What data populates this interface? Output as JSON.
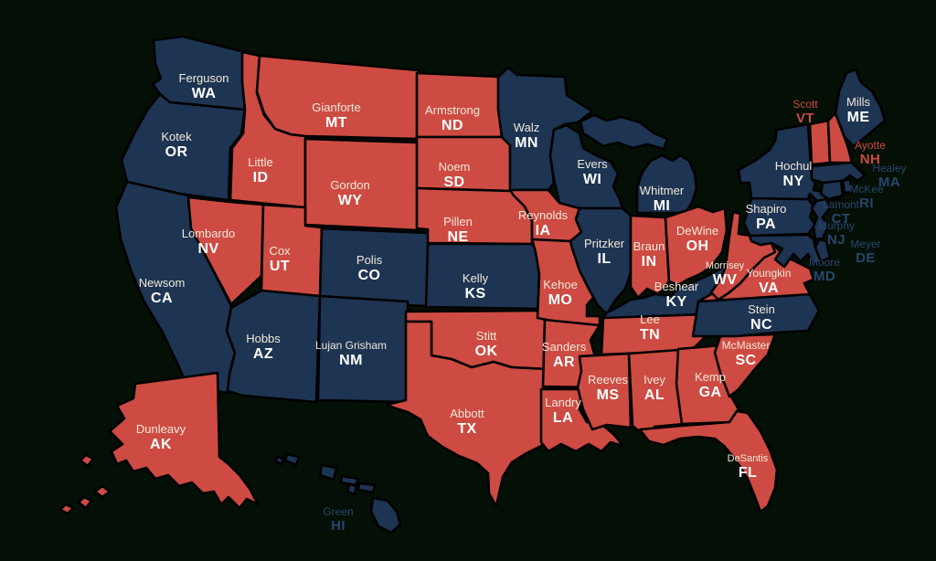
{
  "map": {
    "region": "United States governors by state",
    "colors": {
      "republican": "#cd4b42",
      "democrat": "#1d3452",
      "background": "#040f05",
      "border": "#000000",
      "name_text": "#f2e8da",
      "abbr_text": "#ffffff",
      "outside_rep_label": "#cd4b42",
      "outside_dem_label": "#27466f"
    },
    "states": [
      {
        "abbr": "WA",
        "governor": "Ferguson",
        "party": "D"
      },
      {
        "abbr": "OR",
        "governor": "Kotek",
        "party": "D"
      },
      {
        "abbr": "CA",
        "governor": "Newsom",
        "party": "D"
      },
      {
        "abbr": "NV",
        "governor": "Lombardo",
        "party": "R"
      },
      {
        "abbr": "ID",
        "governor": "Little",
        "party": "R"
      },
      {
        "abbr": "MT",
        "governor": "Gianforte",
        "party": "R"
      },
      {
        "abbr": "WY",
        "governor": "Gordon",
        "party": "R"
      },
      {
        "abbr": "UT",
        "governor": "Cox",
        "party": "R"
      },
      {
        "abbr": "CO",
        "governor": "Polis",
        "party": "D"
      },
      {
        "abbr": "AZ",
        "governor": "Hobbs",
        "party": "D"
      },
      {
        "abbr": "NM",
        "governor": "Lujan Grisham",
        "party": "D"
      },
      {
        "abbr": "AK",
        "governor": "Dunleavy",
        "party": "R"
      },
      {
        "abbr": "HI",
        "governor": "Green",
        "party": "D"
      },
      {
        "abbr": "ND",
        "governor": "Armstrong",
        "party": "R"
      },
      {
        "abbr": "SD",
        "governor": "Noem",
        "party": "R"
      },
      {
        "abbr": "NE",
        "governor": "Pillen",
        "party": "R"
      },
      {
        "abbr": "KS",
        "governor": "Kelly",
        "party": "D"
      },
      {
        "abbr": "OK",
        "governor": "Stitt",
        "party": "R"
      },
      {
        "abbr": "TX",
        "governor": "Abbott",
        "party": "R"
      },
      {
        "abbr": "MN",
        "governor": "Walz",
        "party": "D"
      },
      {
        "abbr": "IA",
        "governor": "Reynolds",
        "party": "R"
      },
      {
        "abbr": "MO",
        "governor": "Kehoe",
        "party": "R"
      },
      {
        "abbr": "AR",
        "governor": "Sanders",
        "party": "R"
      },
      {
        "abbr": "LA",
        "governor": "Landry",
        "party": "R"
      },
      {
        "abbr": "WI",
        "governor": "Evers",
        "party": "D"
      },
      {
        "abbr": "IL",
        "governor": "Pritzker",
        "party": "D"
      },
      {
        "abbr": "IN",
        "governor": "Braun",
        "party": "R"
      },
      {
        "abbr": "MI",
        "governor": "Whitmer",
        "party": "D"
      },
      {
        "abbr": "OH",
        "governor": "DeWine",
        "party": "R"
      },
      {
        "abbr": "KY",
        "governor": "Beshear",
        "party": "D"
      },
      {
        "abbr": "TN",
        "governor": "Lee",
        "party": "R"
      },
      {
        "abbr": "MS",
        "governor": "Reeves",
        "party": "R"
      },
      {
        "abbr": "AL",
        "governor": "Ivey",
        "party": "R"
      },
      {
        "abbr": "GA",
        "governor": "Kemp",
        "party": "R"
      },
      {
        "abbr": "FL",
        "governor": "DeSantis",
        "party": "R"
      },
      {
        "abbr": "SC",
        "governor": "McMaster",
        "party": "R"
      },
      {
        "abbr": "NC",
        "governor": "Stein",
        "party": "D"
      },
      {
        "abbr": "VA",
        "governor": "Youngkin",
        "party": "R"
      },
      {
        "abbr": "WV",
        "governor": "Morrisey",
        "party": "R"
      },
      {
        "abbr": "PA",
        "governor": "Shapiro",
        "party": "D"
      },
      {
        "abbr": "NY",
        "governor": "Hochul",
        "party": "D"
      },
      {
        "abbr": "VT",
        "governor": "Scott",
        "party": "R"
      },
      {
        "abbr": "NH",
        "governor": "Ayotte",
        "party": "R"
      },
      {
        "abbr": "ME",
        "governor": "Mills",
        "party": "D"
      },
      {
        "abbr": "MA",
        "governor": "Healey",
        "party": "D"
      },
      {
        "abbr": "RI",
        "governor": "McKee",
        "party": "D"
      },
      {
        "abbr": "CT",
        "governor": "Lamont",
        "party": "D"
      },
      {
        "abbr": "NJ",
        "governor": "Murphy",
        "party": "D"
      },
      {
        "abbr": "DE",
        "governor": "Meyer",
        "party": "D"
      },
      {
        "abbr": "MD",
        "governor": "Moore",
        "party": "D"
      }
    ]
  }
}
